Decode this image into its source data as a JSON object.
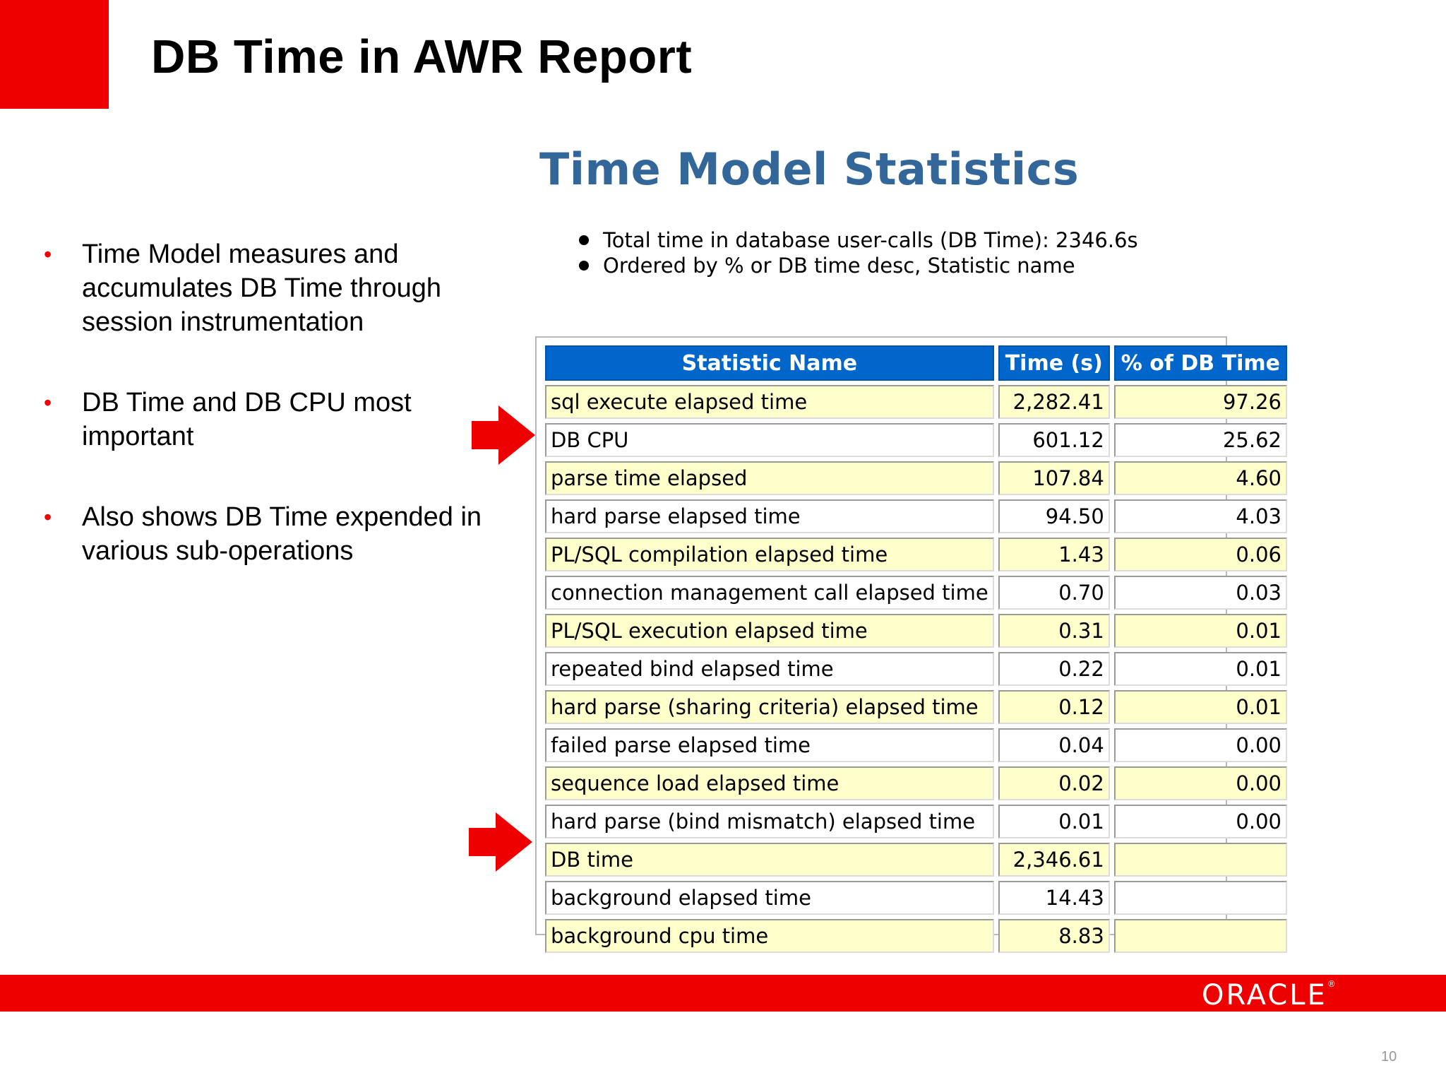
{
  "slide": {
    "title": "DB Time in AWR Report",
    "page_number": "10",
    "brand_color": "#ee0000",
    "logo_text": "ORACLE"
  },
  "bullets": [
    "Time Model measures and accumulates DB Time through session instrumentation",
    "DB Time and DB CPU most important",
    "Also shows DB Time expended in various sub-operations"
  ],
  "report": {
    "title": "Time Model Statistics",
    "title_color": "#336699",
    "notes": [
      "Total time in database user-calls (DB Time): 2346.6s",
      "Ordered by % or DB time desc, Statistic name"
    ],
    "columns": [
      "Statistic Name",
      "Time (s)",
      "% of DB Time"
    ],
    "rows": [
      [
        "sql execute elapsed time",
        "2,282.41",
        "97.26"
      ],
      [
        "DB CPU",
        "601.12",
        "25.62"
      ],
      [
        "parse time elapsed",
        "107.84",
        "4.60"
      ],
      [
        "hard parse elapsed time",
        "94.50",
        "4.03"
      ],
      [
        "PL/SQL compilation elapsed time",
        "1.43",
        "0.06"
      ],
      [
        "connection management call elapsed time",
        "0.70",
        "0.03"
      ],
      [
        "PL/SQL execution elapsed time",
        "0.31",
        "0.01"
      ],
      [
        "repeated bind elapsed time",
        "0.22",
        "0.01"
      ],
      [
        "hard parse (sharing criteria) elapsed time",
        "0.12",
        "0.01"
      ],
      [
        "failed parse elapsed time",
        "0.04",
        "0.00"
      ],
      [
        "sequence load elapsed time",
        "0.02",
        "0.00"
      ],
      [
        "hard parse (bind mismatch) elapsed time",
        "0.01",
        "0.00"
      ],
      [
        "DB time",
        "2,346.61",
        ""
      ],
      [
        "background elapsed time",
        "14.43",
        ""
      ],
      [
        "background cpu time",
        "8.83",
        ""
      ]
    ],
    "highlighted_rows": [
      "DB CPU",
      "DB time"
    ],
    "header_color": "#0066cc",
    "odd_row_color": "#ffffcc"
  },
  "icons": {
    "pointer": "red-arrow-icon",
    "bullet": "bullet-dot-icon"
  }
}
